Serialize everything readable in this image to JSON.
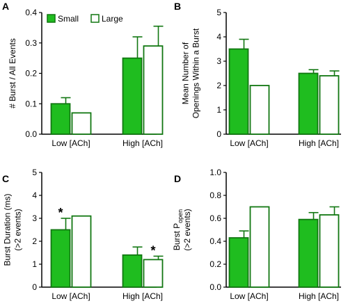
{
  "legend": {
    "small_label": "Small",
    "large_label": "Large"
  },
  "colors": {
    "small_fill": "#1fbd1f",
    "large_fill": "#ffffff",
    "bar_outline": "#117711",
    "axis": "#000000"
  },
  "chart_data": [
    {
      "type": "bar",
      "panel_label": "A",
      "categories": [
        "Low [ACh]",
        "High [ACh]"
      ],
      "series": [
        {
          "name": "Small",
          "values": [
            0.1,
            0.25
          ],
          "errors": [
            0.02,
            0.07
          ]
        },
        {
          "name": "Large",
          "values": [
            0.07,
            0.29
          ],
          "errors": [
            0,
            0.065
          ]
        }
      ],
      "ylabel_lines": [
        "# Burst / All Events"
      ],
      "ylim": [
        0,
        0.4
      ],
      "yticks": [
        "0.0",
        "0.1",
        "0.2",
        "0.3",
        "0.4"
      ],
      "annotations": [],
      "legend_position": "top-left"
    },
    {
      "type": "bar",
      "panel_label": "B",
      "categories": [
        "Low [ACh]",
        "High [ACh]"
      ],
      "series": [
        {
          "name": "Small",
          "values": [
            3.5,
            2.5
          ],
          "errors": [
            0.4,
            0.15
          ]
        },
        {
          "name": "Large",
          "values": [
            2.0,
            2.4
          ],
          "errors": [
            0,
            0.2
          ]
        }
      ],
      "ylabel_lines": [
        "Mean Number of",
        "Openings Within a Burst"
      ],
      "ylim": [
        0,
        5
      ],
      "yticks": [
        "0",
        "1",
        "2",
        "3",
        "4",
        "5"
      ],
      "annotations": []
    },
    {
      "type": "bar",
      "panel_label": "C",
      "categories": [
        "Low [ACh]",
        "High [ACh]"
      ],
      "series": [
        {
          "name": "Small",
          "values": [
            2.5,
            1.4
          ],
          "errors": [
            0.5,
            0.35
          ]
        },
        {
          "name": "Large",
          "values": [
            3.1,
            1.2
          ],
          "errors": [
            0,
            0.15
          ]
        }
      ],
      "ylabel_lines": [
        "Burst Duration (ms)",
        "(>2 events)"
      ],
      "ylim": [
        0,
        5
      ],
      "yticks": [
        "0",
        "1",
        "2",
        "3",
        "4",
        "5"
      ],
      "annotations": [
        {
          "text": "*",
          "category": 0,
          "series": 0
        },
        {
          "text": "*",
          "category": 1,
          "series": 1
        }
      ]
    },
    {
      "type": "bar",
      "panel_label": "D",
      "categories": [
        "Low [ACh]",
        "High [ACh]"
      ],
      "series": [
        {
          "name": "Small",
          "values": [
            0.43,
            0.59
          ],
          "errors": [
            0.06,
            0.06
          ]
        },
        {
          "name": "Large",
          "values": [
            0.7,
            0.63
          ],
          "errors": [
            0,
            0.07
          ]
        }
      ],
      "ylabel_main": "Burst P",
      "ylabel_sub": "open",
      "ylabel_line2": "(>2 events)",
      "ylim": [
        0,
        1.0
      ],
      "yticks": [
        "0.0",
        "0.2",
        "0.4",
        "0.6",
        "0.8",
        "1.0"
      ],
      "annotations": []
    }
  ]
}
